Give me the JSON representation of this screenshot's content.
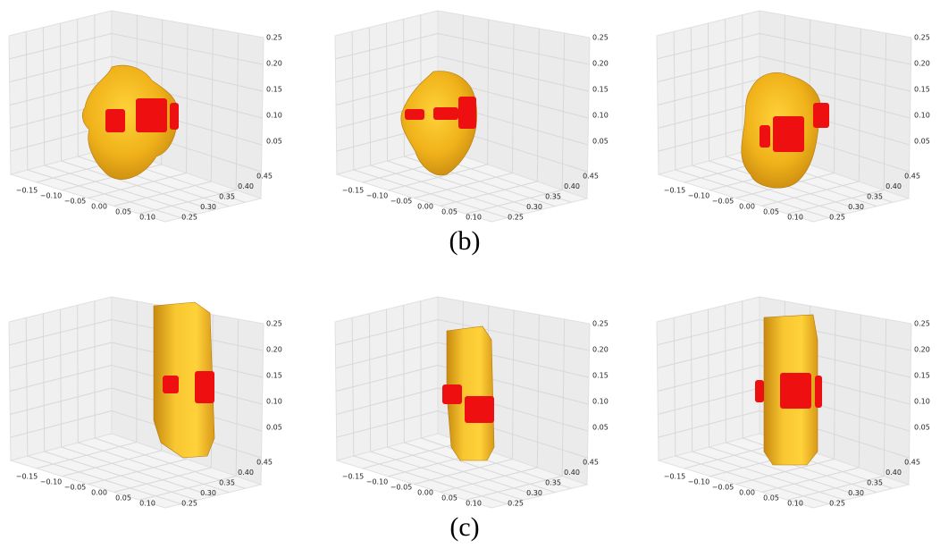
{
  "axes": {
    "x_ticks": [
      "−0.15",
      "−0.10",
      "−0.05",
      "0.00",
      "0.05",
      "0.10"
    ],
    "y_ticks": [
      "0.25",
      "0.30",
      "0.35",
      "0.40",
      "0.45"
    ],
    "z_ticks": [
      "0.05",
      "0.10",
      "0.15",
      "0.20",
      "0.25"
    ]
  },
  "rows": [
    {
      "caption": "(b)"
    },
    {
      "caption": "(c)"
    }
  ]
}
